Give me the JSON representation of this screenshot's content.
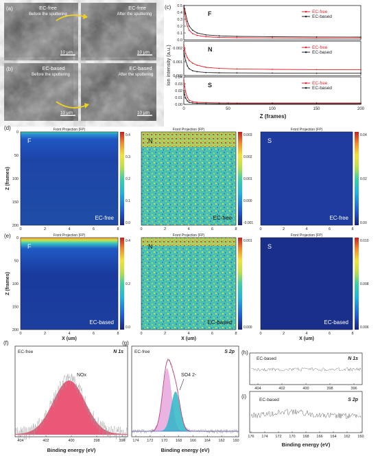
{
  "colors": {
    "ec_free": "#e8202a",
    "ec_based": "#222222",
    "pink": "#e0257a",
    "teal": "#2fb6c7",
    "violet": "#e6a6dc",
    "blue_fit": "#3d6fd9"
  },
  "sem": {
    "a_label": "(a)",
    "a_left_cond": "EC-free",
    "a_left_sub": "Before the sputtering",
    "a_right_cond": "EC-free",
    "a_right_sub": "After the sputtering",
    "b_label": "(b)",
    "b_left_cond": "EC-based",
    "b_left_sub": "Before the sputtering",
    "b_right_cond": "EC-based",
    "b_right_sub": "After the sputtering",
    "scale": "10 μm"
  },
  "depth": {
    "label": "(c)",
    "ylabel": "Ion intensity (a.u.)",
    "xlabel": "Z (frames)",
    "legend": [
      "EC-free",
      "EC-based"
    ],
    "xticks": [
      "0",
      "50",
      "100",
      "150",
      "200"
    ],
    "F": {
      "name": "F",
      "yticks": [
        "0.0",
        "0.1",
        "0.2",
        "0.3",
        "0.4",
        "0.5"
      ]
    },
    "N": {
      "name": "N",
      "yticks": [
        "0.000",
        "0.001",
        "0.002"
      ]
    },
    "S": {
      "name": "S",
      "yticks": [
        "0.00",
        "0.01",
        "0.02",
        "0.03",
        "0.04"
      ]
    }
  },
  "maps": {
    "d_label": "(d)",
    "e_label": "(e)",
    "header": "Front Projection (FP)",
    "zlabel": "Z (frames)",
    "xlabel": "X (um)",
    "xticks": [
      "0",
      "2",
      "4",
      "6",
      "8"
    ],
    "zticks": [
      "0",
      "50",
      "100",
      "150",
      "200"
    ],
    "d": [
      {
        "el": "F",
        "cond": "EC-free",
        "cb": [
          "0.4",
          "0.3",
          "0.2",
          "0.1",
          "0.0"
        ]
      },
      {
        "el": "N",
        "cond": "EC-free",
        "cb": [
          "0.003",
          "0.002",
          "0.001",
          "0.000",
          "-0.001"
        ]
      },
      {
        "el": "S",
        "cond": "EC-free",
        "cb": [
          "0.04",
          "0.02",
          "0.00"
        ]
      }
    ],
    "e": [
      {
        "el": "F",
        "cond": "EC-based",
        "cb": [
          "0.4",
          "0.2",
          "0.0"
        ]
      },
      {
        "el": "N",
        "cond": "EC-based",
        "cb": [
          "0.001",
          "0.000"
        ]
      },
      {
        "el": "S",
        "cond": "EC-based",
        "cb": [
          "0.010",
          "0.008",
          "0.006"
        ]
      }
    ]
  },
  "xps": {
    "xlabel": "Binding energy (eV)",
    "f": {
      "label": "(f)",
      "cond": "EC-free",
      "core": "N 1s",
      "peak": "NOx",
      "xticks": [
        "404",
        "402",
        "400",
        "398",
        "396"
      ]
    },
    "g": {
      "label": "(g)",
      "cond": "EC-free",
      "core": "S 2p",
      "peak": "SO4 2-",
      "xticks": [
        "174",
        "172",
        "170",
        "168",
        "166",
        "164",
        "162",
        "160"
      ]
    },
    "h": {
      "label": "(h)",
      "cond": "EC-based",
      "core": "N 1s",
      "xticks": [
        "404",
        "402",
        "400",
        "398",
        "396"
      ]
    },
    "i": {
      "label": "(i)",
      "cond": "EC-based",
      "core": "S 2p",
      "xticks": [
        "176",
        "174",
        "172",
        "170",
        "168",
        "166",
        "164",
        "162",
        "160"
      ]
    }
  },
  "chart_data": [
    {
      "type": "line",
      "panel": "c-F",
      "xlabel": "Z (frames)",
      "ylabel": "Ion intensity (a.u.)",
      "xlim": [
        0,
        200
      ],
      "ylim": [
        0,
        0.5
      ],
      "x": [
        0,
        1,
        2,
        4,
        6,
        10,
        15,
        25,
        40,
        60,
        100,
        150,
        200
      ],
      "series": [
        {
          "name": "EC-free",
          "values": [
            0.46,
            0.38,
            0.3,
            0.2,
            0.14,
            0.09,
            0.065,
            0.045,
            0.035,
            0.03,
            0.027,
            0.025,
            0.024
          ]
        },
        {
          "name": "EC-based",
          "values": [
            0.5,
            0.45,
            0.38,
            0.27,
            0.2,
            0.14,
            0.1,
            0.072,
            0.058,
            0.05,
            0.045,
            0.042,
            0.04
          ]
        }
      ]
    },
    {
      "type": "line",
      "panel": "c-N",
      "xlabel": "Z (frames)",
      "ylabel": "Ion intensity (a.u.)",
      "xlim": [
        0,
        200
      ],
      "ylim": [
        0,
        0.0025
      ],
      "x": [
        0,
        1,
        2,
        4,
        6,
        10,
        15,
        25,
        40,
        60,
        100,
        150,
        200
      ],
      "series": [
        {
          "name": "EC-free",
          "values": [
            0.0022,
            0.0019,
            0.0016,
            0.0013,
            0.0011,
            0.0009,
            0.00075,
            0.0006,
            0.00052,
            0.00048,
            0.00045,
            0.00043,
            0.00042
          ]
        },
        {
          "name": "EC-based",
          "values": [
            0.0018,
            0.0014,
            0.0011,
            0.0007,
            0.0005,
            0.00035,
            0.00028,
            0.00022,
            0.0002,
            0.00019,
            0.00018,
            0.00017,
            0.00017
          ]
        }
      ]
    },
    {
      "type": "line",
      "panel": "c-S",
      "xlabel": "Z (frames)",
      "ylabel": "Ion intensity (a.u.)",
      "xlim": [
        0,
        200
      ],
      "ylim": [
        0,
        0.04
      ],
      "x": [
        0,
        1,
        2,
        4,
        6,
        10,
        15,
        25,
        40,
        60,
        100,
        150,
        200
      ],
      "series": [
        {
          "name": "EC-free",
          "values": [
            0.035,
            0.026,
            0.018,
            0.01,
            0.006,
            0.004,
            0.003,
            0.0025,
            0.0022,
            0.002,
            0.002,
            0.002,
            0.002
          ]
        },
        {
          "name": "EC-based",
          "values": [
            0.02,
            0.014,
            0.009,
            0.005,
            0.003,
            0.002,
            0.0015,
            0.0012,
            0.001,
            0.001,
            0.001,
            0.001,
            0.001
          ]
        }
      ]
    }
  ]
}
